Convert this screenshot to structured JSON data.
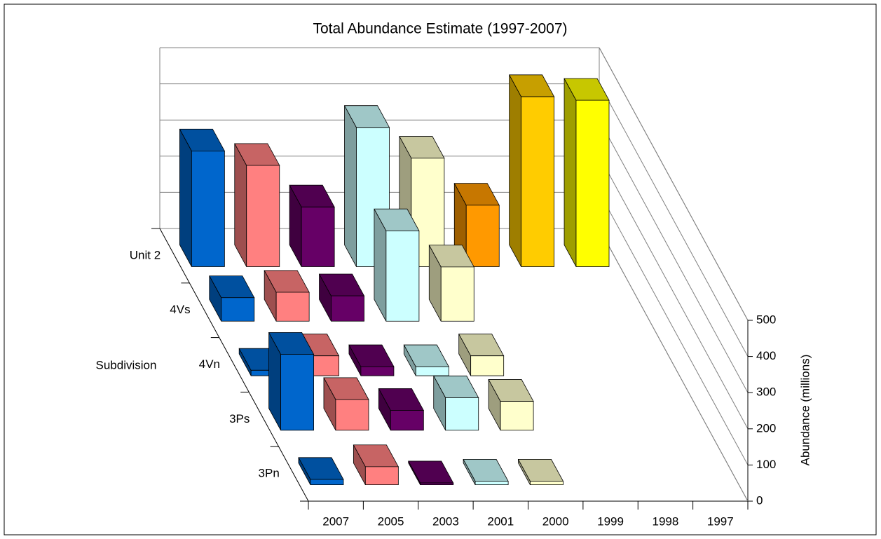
{
  "chart_data": {
    "type": "bar3d",
    "title": "Total Abundance Estimate (1997-2007)",
    "x_label": "Subdivision",
    "y_label": "Abundance (millions)",
    "categories": [
      "2007",
      "2005",
      "2003",
      "2001",
      "2000",
      "1999",
      "1998",
      "1997"
    ],
    "category_colors": [
      "#0066cc",
      "#ff8080",
      "#660066",
      "#ccffff",
      "#ffffcc",
      "#ff9900",
      "#ffcc00",
      "#ffff00"
    ],
    "series": [
      {
        "name": "Unit 2",
        "values": [
          320,
          280,
          165,
          385,
          300,
          170,
          470,
          460
        ]
      },
      {
        "name": "4Vs",
        "values": [
          65,
          80,
          70,
          250,
          150,
          null,
          null,
          null
        ]
      },
      {
        "name": "4Vn",
        "values": [
          15,
          55,
          25,
          25,
          55,
          null,
          null,
          null
        ]
      },
      {
        "name": "3Ps",
        "values": [
          210,
          85,
          55,
          90,
          80,
          null,
          null,
          null
        ]
      },
      {
        "name": "3Pn",
        "values": [
          15,
          50,
          5,
          10,
          10,
          null,
          null,
          null
        ]
      }
    ],
    "ylim": [
      0,
      500
    ],
    "yticks": [
      0,
      100,
      200,
      300,
      400,
      500
    ],
    "grid": true
  }
}
